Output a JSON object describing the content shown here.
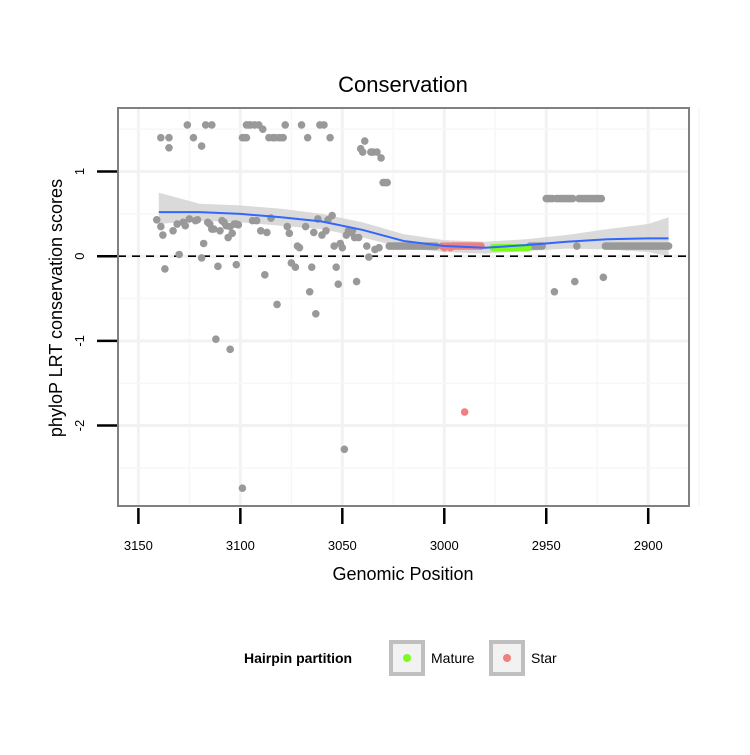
{
  "chart_data": {
    "type": "scatter",
    "title": "Conservation",
    "xlabel": "Genomic Position",
    "ylabel": "phyloP LRT conservation scores",
    "x_reversed": true,
    "xlim": [
      3160,
      2880
    ],
    "ylim": [
      -2.95,
      1.75
    ],
    "x_ticks": [
      3150,
      3100,
      3050,
      3000,
      2950,
      2900
    ],
    "y_ticks": [
      1,
      0,
      -1,
      -2
    ],
    "grid": true,
    "reference_line": {
      "y": 0,
      "style": "dashed"
    },
    "legend": {
      "title": "Hairpin partition",
      "position": "bottom",
      "entries": [
        {
          "label": "Mature",
          "color": "#7cfc1c"
        },
        {
          "label": "Star",
          "color": "#f08080"
        }
      ]
    },
    "colors": {
      "points": "#999999",
      "smooth_line": "#3366ff",
      "confidence_band": "#d3d3d3",
      "mature": "#7cfc1c",
      "star": "#f08080"
    },
    "smooth": {
      "x": [
        3140,
        3120,
        3100,
        3080,
        3060,
        3040,
        3020,
        3000,
        2980,
        2960,
        2940,
        2920,
        2900,
        2890
      ],
      "y": [
        0.52,
        0.52,
        0.5,
        0.46,
        0.41,
        0.31,
        0.18,
        0.12,
        0.1,
        0.13,
        0.17,
        0.2,
        0.21,
        0.21
      ],
      "lower": [
        0.38,
        0.42,
        0.4,
        0.36,
        0.32,
        0.22,
        0.1,
        0.05,
        0.03,
        0.06,
        0.09,
        0.08,
        0.05,
        0.0
      ],
      "upper": [
        0.75,
        0.62,
        0.6,
        0.56,
        0.5,
        0.4,
        0.26,
        0.19,
        0.17,
        0.2,
        0.25,
        0.32,
        0.38,
        0.46
      ]
    },
    "series": [
      {
        "name": "",
        "color": "#999999",
        "points": [
          [
            3141,
            0.43
          ],
          [
            3139,
            1.4
          ],
          [
            3139,
            0.35
          ],
          [
            3138,
            0.25
          ],
          [
            3137,
            -0.15
          ],
          [
            3135,
            1.28
          ],
          [
            3135,
            1.4
          ],
          [
            3133,
            0.3
          ],
          [
            3131,
            0.38
          ],
          [
            3130,
            0.02
          ],
          [
            3128,
            0.4
          ],
          [
            3127,
            0.36
          ],
          [
            3126,
            1.55
          ],
          [
            3125,
            0.44
          ],
          [
            3123,
            1.4
          ],
          [
            3122,
            0.42
          ],
          [
            3121,
            0.43
          ],
          [
            3119,
            1.3
          ],
          [
            3119,
            -0.02
          ],
          [
            3118,
            0.15
          ],
          [
            3117,
            1.55
          ],
          [
            3116,
            0.4
          ],
          [
            3115,
            0.38
          ],
          [
            3114,
            0.32
          ],
          [
            3114,
            1.55
          ],
          [
            3113,
            0.32
          ],
          [
            3112,
            -0.98
          ],
          [
            3111,
            -0.12
          ],
          [
            3110,
            0.3
          ],
          [
            3109,
            0.42
          ],
          [
            3108,
            0.4
          ],
          [
            3107,
            0.36
          ],
          [
            3106,
            0.22
          ],
          [
            3105,
            0.35
          ],
          [
            3105,
            -1.1
          ],
          [
            3104,
            0.27
          ],
          [
            3103,
            0.38
          ],
          [
            3102,
            0.38
          ],
          [
            3102,
            -0.1
          ],
          [
            3101,
            0.37
          ],
          [
            3099,
            -2.74
          ],
          [
            3099,
            1.4
          ],
          [
            3098,
            1.4
          ],
          [
            3097,
            1.55
          ],
          [
            3097,
            1.4
          ],
          [
            3096,
            1.55
          ],
          [
            3095,
            1.55
          ],
          [
            3094,
            0.42
          ],
          [
            3093,
            1.55
          ],
          [
            3092,
            0.42
          ],
          [
            3091,
            1.55
          ],
          [
            3090,
            0.3
          ],
          [
            3089,
            1.5
          ],
          [
            3088,
            -0.22
          ],
          [
            3087,
            0.28
          ],
          [
            3086,
            1.4
          ],
          [
            3085,
            0.45
          ],
          [
            3084,
            1.4
          ],
          [
            3083,
            1.4
          ],
          [
            3082,
            -0.57
          ],
          [
            3081,
            1.4
          ],
          [
            3080,
            1.4
          ],
          [
            3079,
            1.4
          ],
          [
            3078,
            1.55
          ],
          [
            3077,
            0.35
          ],
          [
            3076,
            0.27
          ],
          [
            3075,
            -0.08
          ],
          [
            3073,
            -0.13
          ],
          [
            3072,
            0.12
          ],
          [
            3071,
            0.1
          ],
          [
            3070,
            1.55
          ],
          [
            3068,
            0.35
          ],
          [
            3067,
            1.4
          ],
          [
            3066,
            -0.42
          ],
          [
            3065,
            -0.13
          ],
          [
            3064,
            0.28
          ],
          [
            3063,
            -0.68
          ],
          [
            3062,
            0.44
          ],
          [
            3061,
            1.55
          ],
          [
            3060,
            0.25
          ],
          [
            3059,
            1.55
          ],
          [
            3058,
            0.3
          ],
          [
            3057,
            0.43
          ],
          [
            3056,
            1.4
          ],
          [
            3055,
            0.48
          ],
          [
            3054,
            0.12
          ],
          [
            3053,
            -0.13
          ],
          [
            3052,
            -0.33
          ],
          [
            3051,
            0.15
          ],
          [
            3050,
            0.1
          ],
          [
            3049,
            -2.28
          ],
          [
            3048,
            0.25
          ],
          [
            3047,
            0.3
          ],
          [
            3046,
            0.28
          ],
          [
            3045,
            0.3
          ],
          [
            3044,
            0.22
          ],
          [
            3043,
            -0.3
          ],
          [
            3042,
            0.22
          ],
          [
            3041,
            1.27
          ],
          [
            3040,
            1.23
          ],
          [
            3039,
            1.36
          ],
          [
            3038,
            0.12
          ],
          [
            3037,
            -0.01
          ],
          [
            3036,
            1.23
          ],
          [
            3035,
            1.23
          ],
          [
            3034,
            0.08
          ],
          [
            3033,
            1.23
          ],
          [
            3032,
            0.1
          ],
          [
            3031,
            1.16
          ],
          [
            3030,
            0.87
          ],
          [
            3029,
            0.87
          ],
          [
            3028,
            0.87
          ],
          [
            3027,
            0.12
          ],
          [
            3026,
            0.12
          ],
          [
            3025,
            0.12
          ],
          [
            3024,
            0.12
          ],
          [
            3023,
            0.12
          ],
          [
            3022,
            0.12
          ],
          [
            3021,
            0.12
          ],
          [
            3020,
            0.12
          ],
          [
            3019,
            0.12
          ],
          [
            3018,
            0.12
          ],
          [
            3017,
            0.12
          ],
          [
            3016,
            0.12
          ],
          [
            3015,
            0.12
          ],
          [
            3014,
            0.12
          ],
          [
            3013,
            0.12
          ],
          [
            3012,
            0.12
          ],
          [
            3011,
            0.12
          ],
          [
            3010,
            0.12
          ],
          [
            3009,
            0.12
          ],
          [
            3008,
            0.12
          ],
          [
            3007,
            0.12
          ],
          [
            3006,
            0.12
          ],
          [
            3005,
            0.12
          ],
          [
            3004,
            0.12
          ],
          [
            2958,
            0.12
          ],
          [
            2957,
            0.12
          ],
          [
            2956,
            0.12
          ],
          [
            2955,
            0.12
          ],
          [
            2954,
            0.12
          ],
          [
            2953,
            0.12
          ],
          [
            2952,
            0.12
          ],
          [
            2950,
            0.68
          ],
          [
            2949,
            0.68
          ],
          [
            2948,
            0.68
          ],
          [
            2947,
            0.68
          ],
          [
            2946,
            -0.42
          ],
          [
            2945,
            0.68
          ],
          [
            2944,
            0.68
          ],
          [
            2943,
            0.68
          ],
          [
            2942,
            0.68
          ],
          [
            2941,
            0.68
          ],
          [
            2940,
            0.68
          ],
          [
            2939,
            0.68
          ],
          [
            2938,
            0.68
          ],
          [
            2937,
            0.68
          ],
          [
            2936,
            -0.3
          ],
          [
            2935,
            0.12
          ],
          [
            2934,
            0.68
          ],
          [
            2933,
            0.68
          ],
          [
            2932,
            0.68
          ],
          [
            2931,
            0.68
          ],
          [
            2930,
            0.68
          ],
          [
            2929,
            0.68
          ],
          [
            2928,
            0.68
          ],
          [
            2927,
            0.68
          ],
          [
            2926,
            0.68
          ],
          [
            2925,
            0.68
          ],
          [
            2924,
            0.68
          ],
          [
            2923,
            0.68
          ],
          [
            2922,
            -0.25
          ],
          [
            2921,
            0.12
          ],
          [
            2920,
            0.12
          ],
          [
            2919,
            0.12
          ],
          [
            2918,
            0.12
          ],
          [
            2917,
            0.12
          ],
          [
            2916,
            0.12
          ],
          [
            2915,
            0.12
          ],
          [
            2914,
            0.12
          ],
          [
            2913,
            0.12
          ],
          [
            2912,
            0.12
          ],
          [
            2911,
            0.12
          ],
          [
            2910,
            0.12
          ],
          [
            2909,
            0.12
          ],
          [
            2908,
            0.12
          ],
          [
            2907,
            0.12
          ],
          [
            2906,
            0.12
          ],
          [
            2905,
            0.12
          ],
          [
            2904,
            0.12
          ],
          [
            2903,
            0.12
          ],
          [
            2902,
            0.12
          ],
          [
            2901,
            0.12
          ],
          [
            2900,
            0.12
          ],
          [
            2899,
            0.12
          ],
          [
            2898,
            0.12
          ],
          [
            2897,
            0.12
          ],
          [
            2896,
            0.12
          ],
          [
            2895,
            0.12
          ],
          [
            2894,
            0.12
          ],
          [
            2893,
            0.12
          ],
          [
            2892,
            0.12
          ],
          [
            2891,
            0.12
          ],
          [
            2890,
            0.12
          ]
        ]
      },
      {
        "name": "Star",
        "color": "#f08080",
        "points": [
          [
            3001,
            0.12
          ],
          [
            3000,
            0.1
          ],
          [
            2999,
            0.12
          ],
          [
            2998,
            0.12
          ],
          [
            2997,
            0.1
          ],
          [
            2996,
            0.12
          ],
          [
            2995,
            0.12
          ],
          [
            2994,
            0.12
          ],
          [
            2993,
            0.12
          ],
          [
            2992,
            0.12
          ],
          [
            2991,
            0.12
          ],
          [
            2990,
            0.12
          ],
          [
            2989,
            0.12
          ],
          [
            2988,
            0.12
          ],
          [
            2987,
            0.12
          ],
          [
            2986,
            0.12
          ],
          [
            2985,
            0.12
          ],
          [
            2984,
            0.12
          ],
          [
            2983,
            0.12
          ],
          [
            2982,
            0.12
          ],
          [
            2990,
            -1.84
          ]
        ]
      },
      {
        "name": "Mature",
        "color": "#7cfc1c",
        "points": [
          [
            2976,
            0.1
          ],
          [
            2975,
            0.1
          ],
          [
            2974,
            0.1
          ],
          [
            2973,
            0.1
          ],
          [
            2972,
            0.1
          ],
          [
            2971,
            0.1
          ],
          [
            2970,
            0.1
          ],
          [
            2969,
            0.1
          ],
          [
            2968,
            0.1
          ],
          [
            2967,
            0.1
          ],
          [
            2966,
            0.1
          ],
          [
            2965,
            0.1
          ],
          [
            2964,
            0.1
          ],
          [
            2963,
            0.1
          ],
          [
            2962,
            0.1
          ],
          [
            2961,
            0.1
          ],
          [
            2960,
            0.1
          ],
          [
            2959,
            0.1
          ]
        ]
      }
    ]
  }
}
